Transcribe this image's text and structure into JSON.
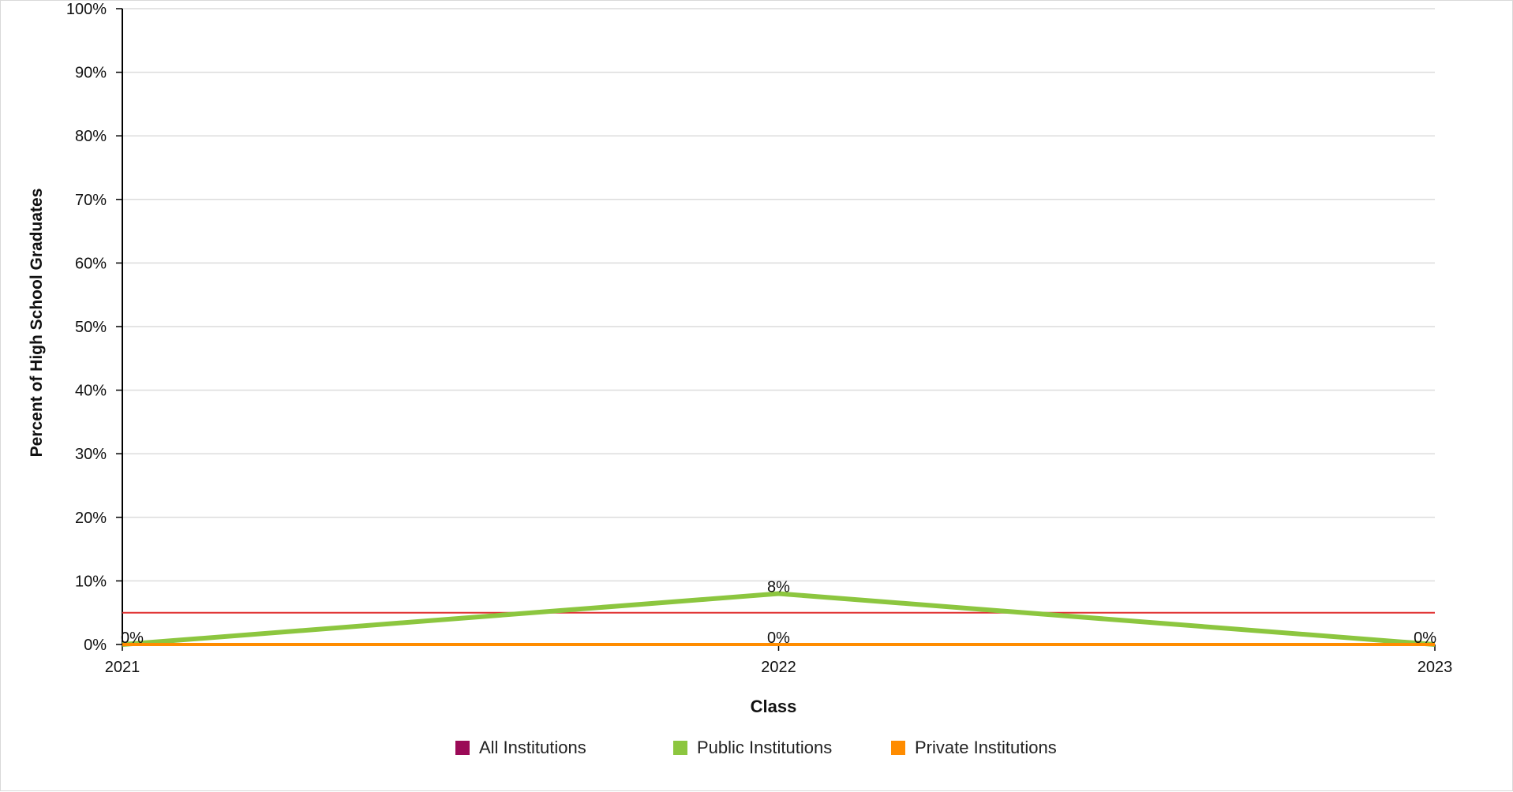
{
  "chart_data": {
    "type": "line",
    "xlabel": "Class",
    "ylabel": "Percent of High School Graduates",
    "categories": [
      "2021",
      "2022",
      "2023"
    ],
    "ylim": [
      0,
      100
    ],
    "y_ticks": [
      "0%",
      "10%",
      "20%",
      "30%",
      "40%",
      "50%",
      "60%",
      "70%",
      "80%",
      "90%",
      "100%"
    ],
    "grid": true,
    "legend_position": "bottom",
    "reference_line": {
      "value": 5,
      "color": "#e03131"
    },
    "series": [
      {
        "name": "All Institutions",
        "color": "#9b0a57",
        "values": [
          0,
          0,
          0
        ],
        "labels": [
          "",
          "",
          ""
        ]
      },
      {
        "name": "Public Institutions",
        "color": "#8cc63f",
        "values": [
          0,
          8,
          0
        ],
        "labels": [
          "0%",
          "8%",
          "0%"
        ]
      },
      {
        "name": "Private Institutions",
        "color": "#ff8c00",
        "values": [
          0,
          0,
          0
        ],
        "labels": [
          "",
          "0%",
          ""
        ]
      }
    ]
  }
}
